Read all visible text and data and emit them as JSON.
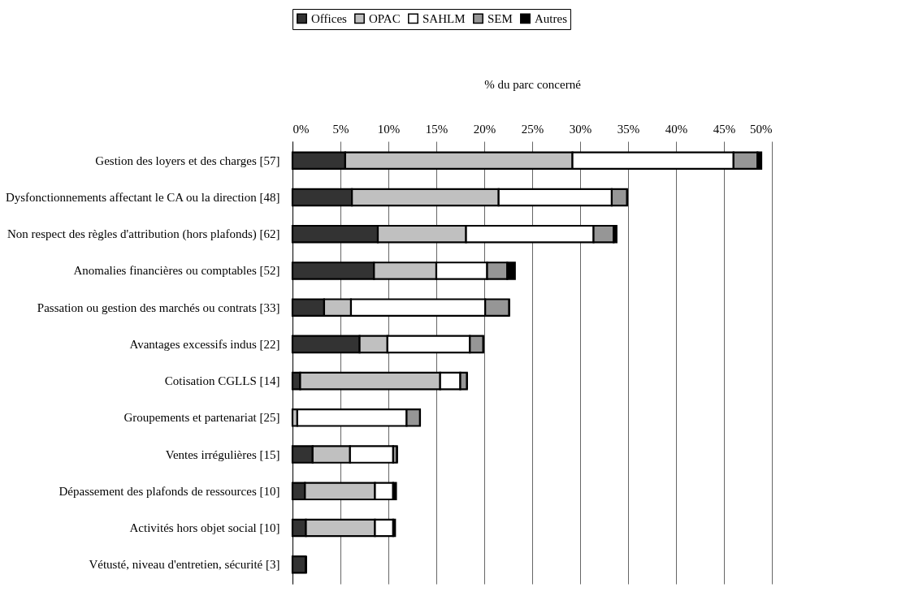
{
  "chart_data": {
    "type": "bar",
    "orientation": "horizontal",
    "stacked": true,
    "xlabel": "% du parc concerné",
    "categories": [
      "Gestion des loyers et des charges [57]",
      "Dysfonctionnements affectant le CA ou la direction [48]",
      "Non respect des règles d'attribution (hors plafonds) [62]",
      "Anomalies financières ou comptables [52]",
      "Passation ou gestion des marchés ou contrats [33]",
      "Avantages excessifs indus [22]",
      "Cotisation CGLLS [14]",
      "Groupements et partenariat [25]",
      "Ventes irrégulières [15]",
      "Dépassement des plafonds de ressources [10]",
      "Activités hors objet social [10]",
      "Vétusté, niveau d'entretien, sécurité [3]"
    ],
    "series": [
      {
        "name": "Offices",
        "color": "#333333",
        "values": [
          5.5,
          6.2,
          8.9,
          8.5,
          3.3,
          7.0,
          0.8,
          null,
          2.1,
          1.3,
          1.4,
          1.4
        ]
      },
      {
        "name": "OPAC",
        "color": "#c0c0c0",
        "values": [
          23.7,
          15.3,
          9.2,
          6.5,
          2.8,
          2.9,
          14.6,
          0.5,
          3.9,
          7.3,
          7.2,
          0
        ]
      },
      {
        "name": "SAHLM",
        "color": "#ffffff",
        "values": [
          16.8,
          11.8,
          13.3,
          5.3,
          14.0,
          8.6,
          2.1,
          11.4,
          4.5,
          1.9,
          1.9,
          0
        ]
      },
      {
        "name": "SEM",
        "color": "#969696",
        "values": [
          2.5,
          1.6,
          2.1,
          2.1,
          2.5,
          1.4,
          0.7,
          1.4,
          0.4,
          0,
          null,
          0
        ]
      },
      {
        "name": "Autres",
        "color": "#000000",
        "values": [
          0.4,
          0,
          0.3,
          0.8,
          0,
          0,
          0,
          0,
          0,
          0.3,
          0.2,
          0
        ]
      }
    ],
    "xlim": [
      0,
      50
    ],
    "xticks": [
      {
        "value": 0,
        "label": "0%"
      },
      {
        "value": 5,
        "label": "5%"
      },
      {
        "value": 10,
        "label": "10%"
      },
      {
        "value": 15,
        "label": "15%"
      },
      {
        "value": 20,
        "label": "20%"
      },
      {
        "value": 25,
        "label": "25%"
      },
      {
        "value": 30,
        "label": "30%"
      },
      {
        "value": 35,
        "label": "35%"
      },
      {
        "value": 40,
        "label": "40%"
      },
      {
        "value": 45,
        "label": "45%"
      },
      {
        "value": 50,
        "label": "50%"
      }
    ],
    "grid": "x",
    "legend": "top"
  }
}
